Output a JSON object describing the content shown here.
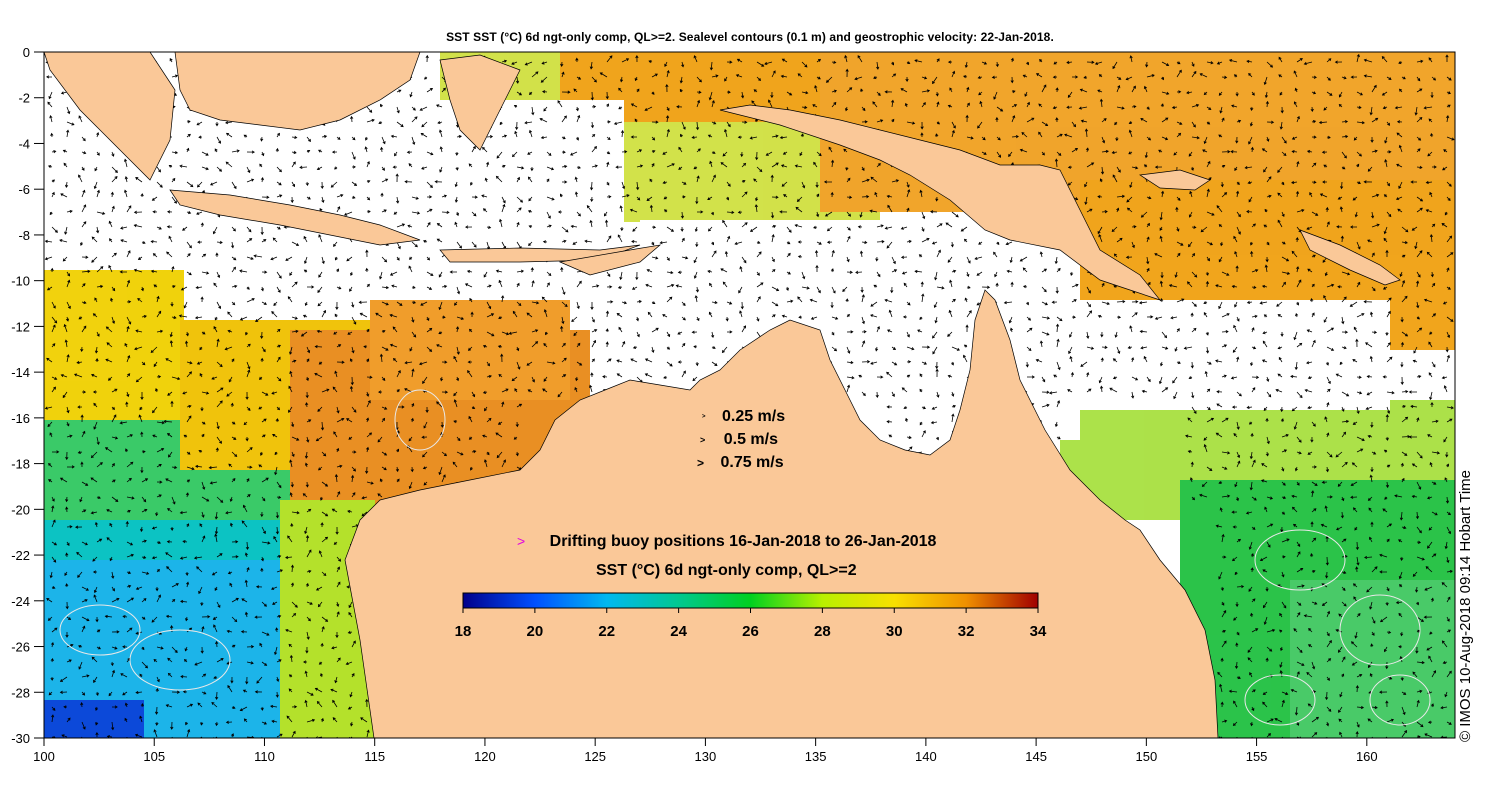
{
  "title": "SST SST (°C) 6d ngt-only comp, QL>=2. Sealevel contours (0.1 m) and geostrophic velocity: 22-Jan-2018.",
  "credit": "© IMOS 10-Aug-2018 09:14 Hobart Time",
  "axes": {
    "x_ticks": [
      "100",
      "105",
      "110",
      "115",
      "120",
      "125",
      "130",
      "135",
      "140",
      "145",
      "150",
      "155",
      "160"
    ],
    "y_ticks": [
      "0",
      "-2",
      "-4",
      "-6",
      "-8",
      "-10",
      "-12",
      "-14",
      "-16",
      "-18",
      "-20",
      "-22",
      "-24",
      "-26",
      "-28",
      "-30"
    ],
    "lon_range": [
      100,
      164
    ],
    "lat_range": [
      -30,
      0
    ]
  },
  "velocity_legend": {
    "arrow_glyph": ">",
    "items": [
      "0.25 m/s",
      "0.5 m/s",
      "0.75 m/s"
    ]
  },
  "buoy_legend": {
    "marker_glyph": ">",
    "marker_color": "#e000e0",
    "label": "Drifting buoy positions 16-Jan-2018 to 26-Jan-2018"
  },
  "colorbar": {
    "title": "SST (°C) 6d ngt-only comp, QL>=2",
    "ticks": [
      "18",
      "20",
      "22",
      "24",
      "26",
      "28",
      "30",
      "32",
      "34"
    ],
    "range": [
      18,
      34
    ],
    "colors": [
      "#00008b",
      "#0050ff",
      "#00b8f0",
      "#00c890",
      "#00d020",
      "#b8f000",
      "#f8e000",
      "#f09000",
      "#a00000"
    ]
  },
  "colors": {
    "land": "#fac898",
    "coast": "#000000",
    "vector": "#000000",
    "contour": "#e8e8e8"
  }
}
